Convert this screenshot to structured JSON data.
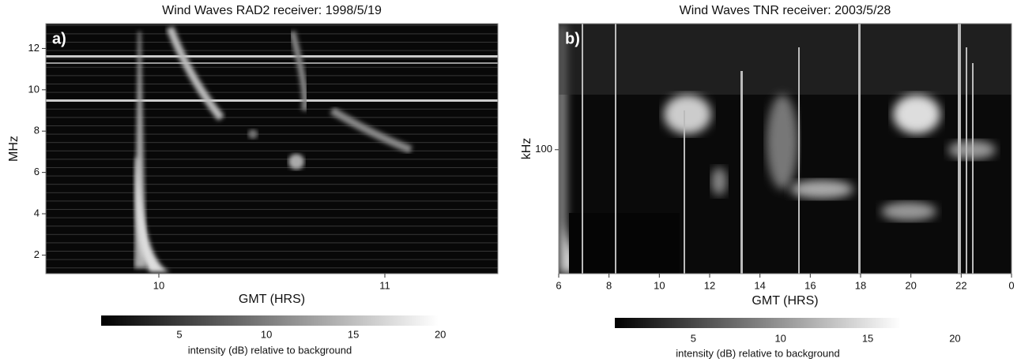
{
  "chart_data": [
    {
      "type": "spectrogram",
      "title": "Wind Waves RAD2 receiver: 1998/5/19",
      "panel_label": "a)",
      "xlabel": "GMT (HRS)",
      "ylabel": "MHz",
      "xlim": [
        9.5,
        11.5
      ],
      "xticks": [
        10,
        11
      ],
      "ylim": [
        1.1,
        13.2
      ],
      "yticks": [
        2,
        4,
        6,
        8,
        10,
        12
      ],
      "yscale": "linear",
      "colorbar": {
        "label": "intensity (dB) relative to background",
        "clim": [
          0.5,
          19.9
        ],
        "ticks": [
          5,
          10,
          15,
          20
        ],
        "colors": [
          "#000000",
          "#ffffff"
        ]
      }
    },
    {
      "type": "spectrogram",
      "title": "Wind Waves TNR receiver: 2003/5/28",
      "panel_label": "b)",
      "xlabel": "GMT (HRS)",
      "ylabel": "kHz",
      "xlim": [
        6,
        24
      ],
      "xticks": [
        6,
        8,
        10,
        12,
        14,
        16,
        18,
        20,
        22,
        {
          "value": 24,
          "label": "0"
        }
      ],
      "ylim": [
        30,
        340
      ],
      "yticks": [
        100
      ],
      "yscale": "log",
      "colorbar": {
        "label": "intensity (dB) relative to background",
        "clim": [
          0.5,
          16.9
        ],
        "ticks": [
          5,
          10,
          15,
          20
        ],
        "colors": [
          "#000000",
          "#ffffff"
        ]
      }
    }
  ]
}
